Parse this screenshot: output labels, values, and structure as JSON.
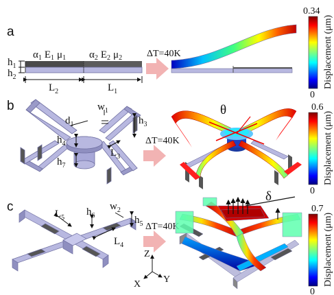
{
  "panels": {
    "a": {
      "letter": "a",
      "h1": "h",
      "h1_sub": "1",
      "h2": "h",
      "h2_sub": "2",
      "mat1": "α",
      "mat1_sub_a": "1",
      "mat1_E": "E",
      "mat1_sub_e": "1",
      "mat1_mu": "μ",
      "mat1_sub_m": "1",
      "mat2": "α",
      "mat2_sub_a": "2",
      "mat2_E": "E",
      "mat2_sub_e": "2",
      "mat2_mu": "μ",
      "mat2_sub_m": "2",
      "L2": "L",
      "L2_sub": "2",
      "L1": "L",
      "L1_sub": "1",
      "deltaT": "ΔT=40K"
    },
    "b": {
      "letter": "b",
      "d1": "d",
      "d1_sub": "1",
      "w1": "w",
      "w1_sub": "1",
      "h3": "h",
      "h3_sub": "3",
      "h4": "h",
      "h4_sub": "4",
      "L3": "L",
      "L3_sub": "3",
      "h7": "h",
      "h7_sub": "7",
      "deltaT": "ΔT=40K",
      "theta": "θ"
    },
    "c": {
      "letter": "c",
      "L5": "L",
      "L5_sub": "5",
      "h6": "h",
      "h6_sub": "6",
      "w2": "w",
      "w2_sub": "2",
      "h5": "h",
      "h5_sub": "5",
      "L4": "L",
      "L4_sub": "4",
      "deltaT": "ΔT=40K",
      "delta": "δ",
      "axis_z": "Z",
      "axis_x": "X",
      "axis_y": "Y"
    }
  },
  "colorbars": [
    {
      "max": "0.34",
      "min": "0",
      "label": "Displacement (μm)"
    },
    {
      "max": "0.6",
      "min": "0",
      "label": "Displacement (μm)"
    },
    {
      "max": "0.7",
      "min": "0",
      "label": "Displacement (μm)"
    }
  ],
  "colors": {
    "structure": "#b8b8e0",
    "structure_dark": "#7f7fb0",
    "dark_layer": "#555",
    "arrow": "#f2b3b3"
  }
}
